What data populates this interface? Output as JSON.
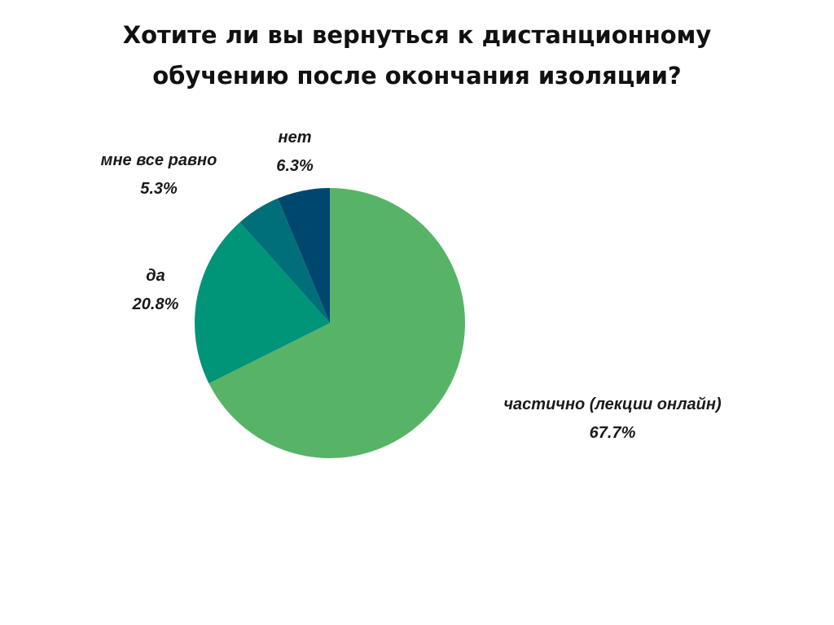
{
  "chart_data": {
    "type": "pie",
    "title_lines": [
      "Хотите ли вы вернуться к дистанционному",
      "обучению после окончания изоляции?"
    ],
    "slices": [
      {
        "label": "частично (лекции онлайн)",
        "value": 67.7,
        "percent_label": "67.7%",
        "color": "#57b466"
      },
      {
        "label": "да",
        "value": 20.8,
        "percent_label": "20.8%",
        "color": "#009479"
      },
      {
        "label": "мне все равно",
        "value": 5.3,
        "percent_label": "5.3%",
        "color": "#006f7a"
      },
      {
        "label": "нет",
        "value": 6.3,
        "percent_label": "6.3%",
        "color": "#00476f"
      }
    ],
    "start_angle": "12 o'clock",
    "direction": "clockwise",
    "legend": "none",
    "data_labels": "outside"
  }
}
